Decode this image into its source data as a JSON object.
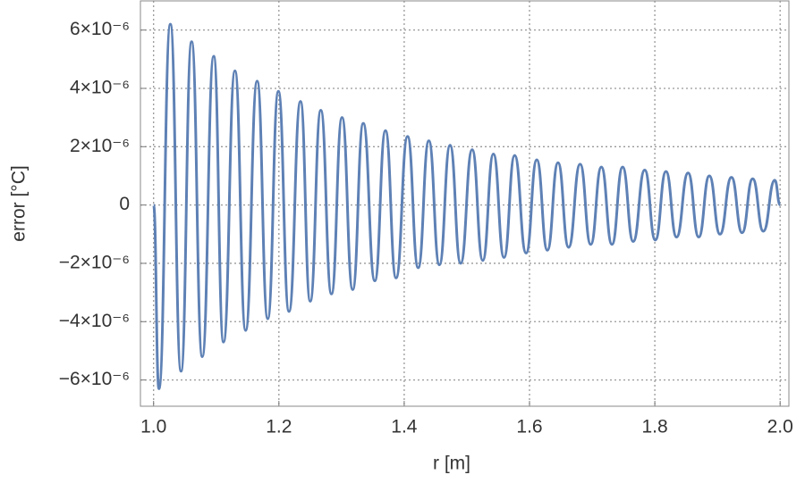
{
  "chart_data": {
    "type": "line",
    "x_label": "r [m]",
    "y_label": "error [°C]",
    "xlim": [
      0.979,
      2.014
    ],
    "ylim": [
      -6.9e-06,
      7e-06
    ],
    "xticks": [
      {
        "value": 1,
        "label": "1.0"
      },
      1.2,
      1.4,
      1.6,
      1.8,
      {
        "value": 2,
        "label": "2.0"
      }
    ],
    "yticks": [
      {
        "value": -6e-06,
        "label": "−6×10⁻⁶"
      },
      {
        "value": -4e-06,
        "label": "−4×10⁻⁶"
      },
      {
        "value": -2e-06,
        "label": "−2×10⁻⁶"
      },
      0,
      {
        "value": 2e-06,
        "label": "2×10⁻⁶"
      },
      {
        "value": 4e-06,
        "label": "4×10⁻⁶"
      },
      {
        "value": 6e-06,
        "label": "6×10⁻⁶"
      }
    ],
    "grid": true,
    "series": [
      {
        "color": "#5e81b5",
        "x": [
          1.0,
          1.0085,
          1.0268,
          1.0438,
          1.0607,
          1.0777,
          1.096,
          1.1116,
          1.1299,
          1.1469,
          1.1653,
          1.1822,
          1.1992,
          1.2161,
          1.2345,
          1.25,
          1.2669,
          1.2839,
          1.3008,
          1.3178,
          1.3347,
          1.3531,
          1.3701,
          1.387,
          1.4054,
          1.4223,
          1.4393,
          1.4562,
          1.4732,
          1.4901,
          1.5085,
          1.5254,
          1.5424,
          1.5593,
          1.5763,
          1.5946,
          1.6116,
          1.6285,
          1.6455,
          1.6624,
          1.6808,
          1.6977,
          1.7147,
          1.7316,
          1.7486,
          1.7655,
          1.7839,
          1.8008,
          1.8178,
          1.8347,
          1.8531,
          1.8701,
          1.887,
          1.904,
          1.9223,
          1.9393,
          1.9562,
          1.9732,
          1.9915,
          2.0
        ],
        "values": [
          0,
          -6.3e-06,
          6.2e-06,
          -5.7e-06,
          5.6e-06,
          -5.2e-06,
          5.1e-06,
          -4.7e-06,
          4.6e-06,
          -4.3e-06,
          4.25e-06,
          -3.9e-06,
          3.9e-06,
          -3.65e-06,
          3.55e-06,
          -3.3e-06,
          3.25e-06,
          -3.05e-06,
          3e-06,
          -2.9e-06,
          2.8e-06,
          -2.6e-06,
          2.55e-06,
          -2.5e-06,
          2.35e-06,
          -2.15e-06,
          2.2e-06,
          -2.05e-06,
          2.05e-06,
          -2e-06,
          1.9e-06,
          -1.9e-06,
          1.75e-06,
          -1.8e-06,
          1.7e-06,
          -1.65e-06,
          1.55e-06,
          -1.55e-06,
          1.45e-06,
          -1.45e-06,
          1.4e-06,
          -1.35e-06,
          1.3e-06,
          -1.35e-06,
          1.3e-06,
          -1.25e-06,
          1.2e-06,
          -1.2e-06,
          1.15e-06,
          -1.1e-06,
          1.1e-06,
          -1.1e-06,
          1e-06,
          -1e-06,
          9.5e-07,
          -9.5e-07,
          9e-07,
          -9e-07,
          8.5e-07,
          0
        ]
      }
    ]
  }
}
